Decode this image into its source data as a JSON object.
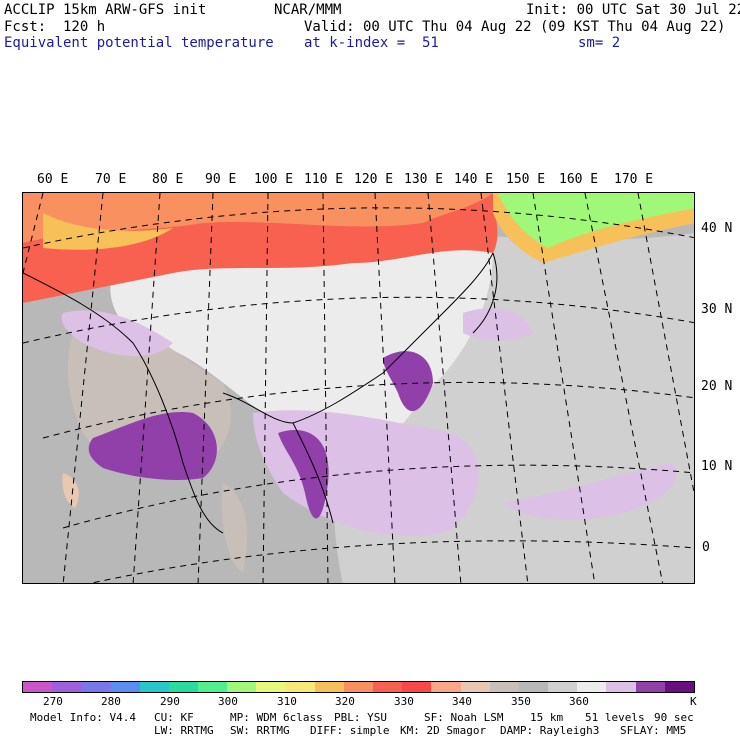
{
  "header": {
    "model": "ACCLIP 15km ARW-GFS init",
    "org": "NCAR/MMM",
    "init": "Init: 00 UTC Sat 30 Jul 22",
    "fcst": "Fcst:  120 h",
    "valid": "Valid: 00 UTC Thu 04 Aug 22 (09 KST Thu 04 Aug 22)",
    "field": "Equivalent potential temperature",
    "level": "at k-index =  51",
    "smooth": "sm= 2"
  },
  "map": {
    "lon_labels": [
      "60 E",
      "70 E",
      "80 E",
      "90 E",
      "100 E",
      "110 E",
      "120 E",
      "130 E",
      "140 E",
      "150 E",
      "160 E",
      "170 E"
    ],
    "lat_labels": [
      "40 N",
      "30 N",
      "20 N",
      "10 N",
      "0"
    ]
  },
  "colorbar": {
    "colors": [
      "#cc55cc",
      "#a060dd",
      "#7878e8",
      "#5a8ef0",
      "#28c8c8",
      "#28dca0",
      "#50f090",
      "#a0f878",
      "#e8f878",
      "#f8e878",
      "#f8c058",
      "#f89060",
      "#f86050",
      "#f84848",
      "#f8a888",
      "#e8c8b0",
      "#c8c0b8",
      "#b8b8b8",
      "#d0d0d0",
      "#ececec",
      "#dcc0e6",
      "#9040a8",
      "#6a0f80"
    ],
    "labels": [
      "270",
      "280",
      "290",
      "300",
      "310",
      "320",
      "330",
      "340",
      "350",
      "360"
    ],
    "unit": "K"
  },
  "footer": {
    "model_info": "Model Info: V4.4",
    "cu": "CU: KF",
    "mp": "MP: WDM 6class",
    "pbl": "PBL: YSU",
    "sf": "SF: Noah LSM",
    "res": "15 km",
    "levels": "51 levels",
    "dt": "90 sec",
    "lw": "LW: RRTMG",
    "sw": "SW: RRTMG",
    "diff": "DIFF: simple",
    "km": "KM: 2D Smagor",
    "damp": "DAMP: Rayleigh3",
    "sflay": "SFLAY: MM5"
  }
}
